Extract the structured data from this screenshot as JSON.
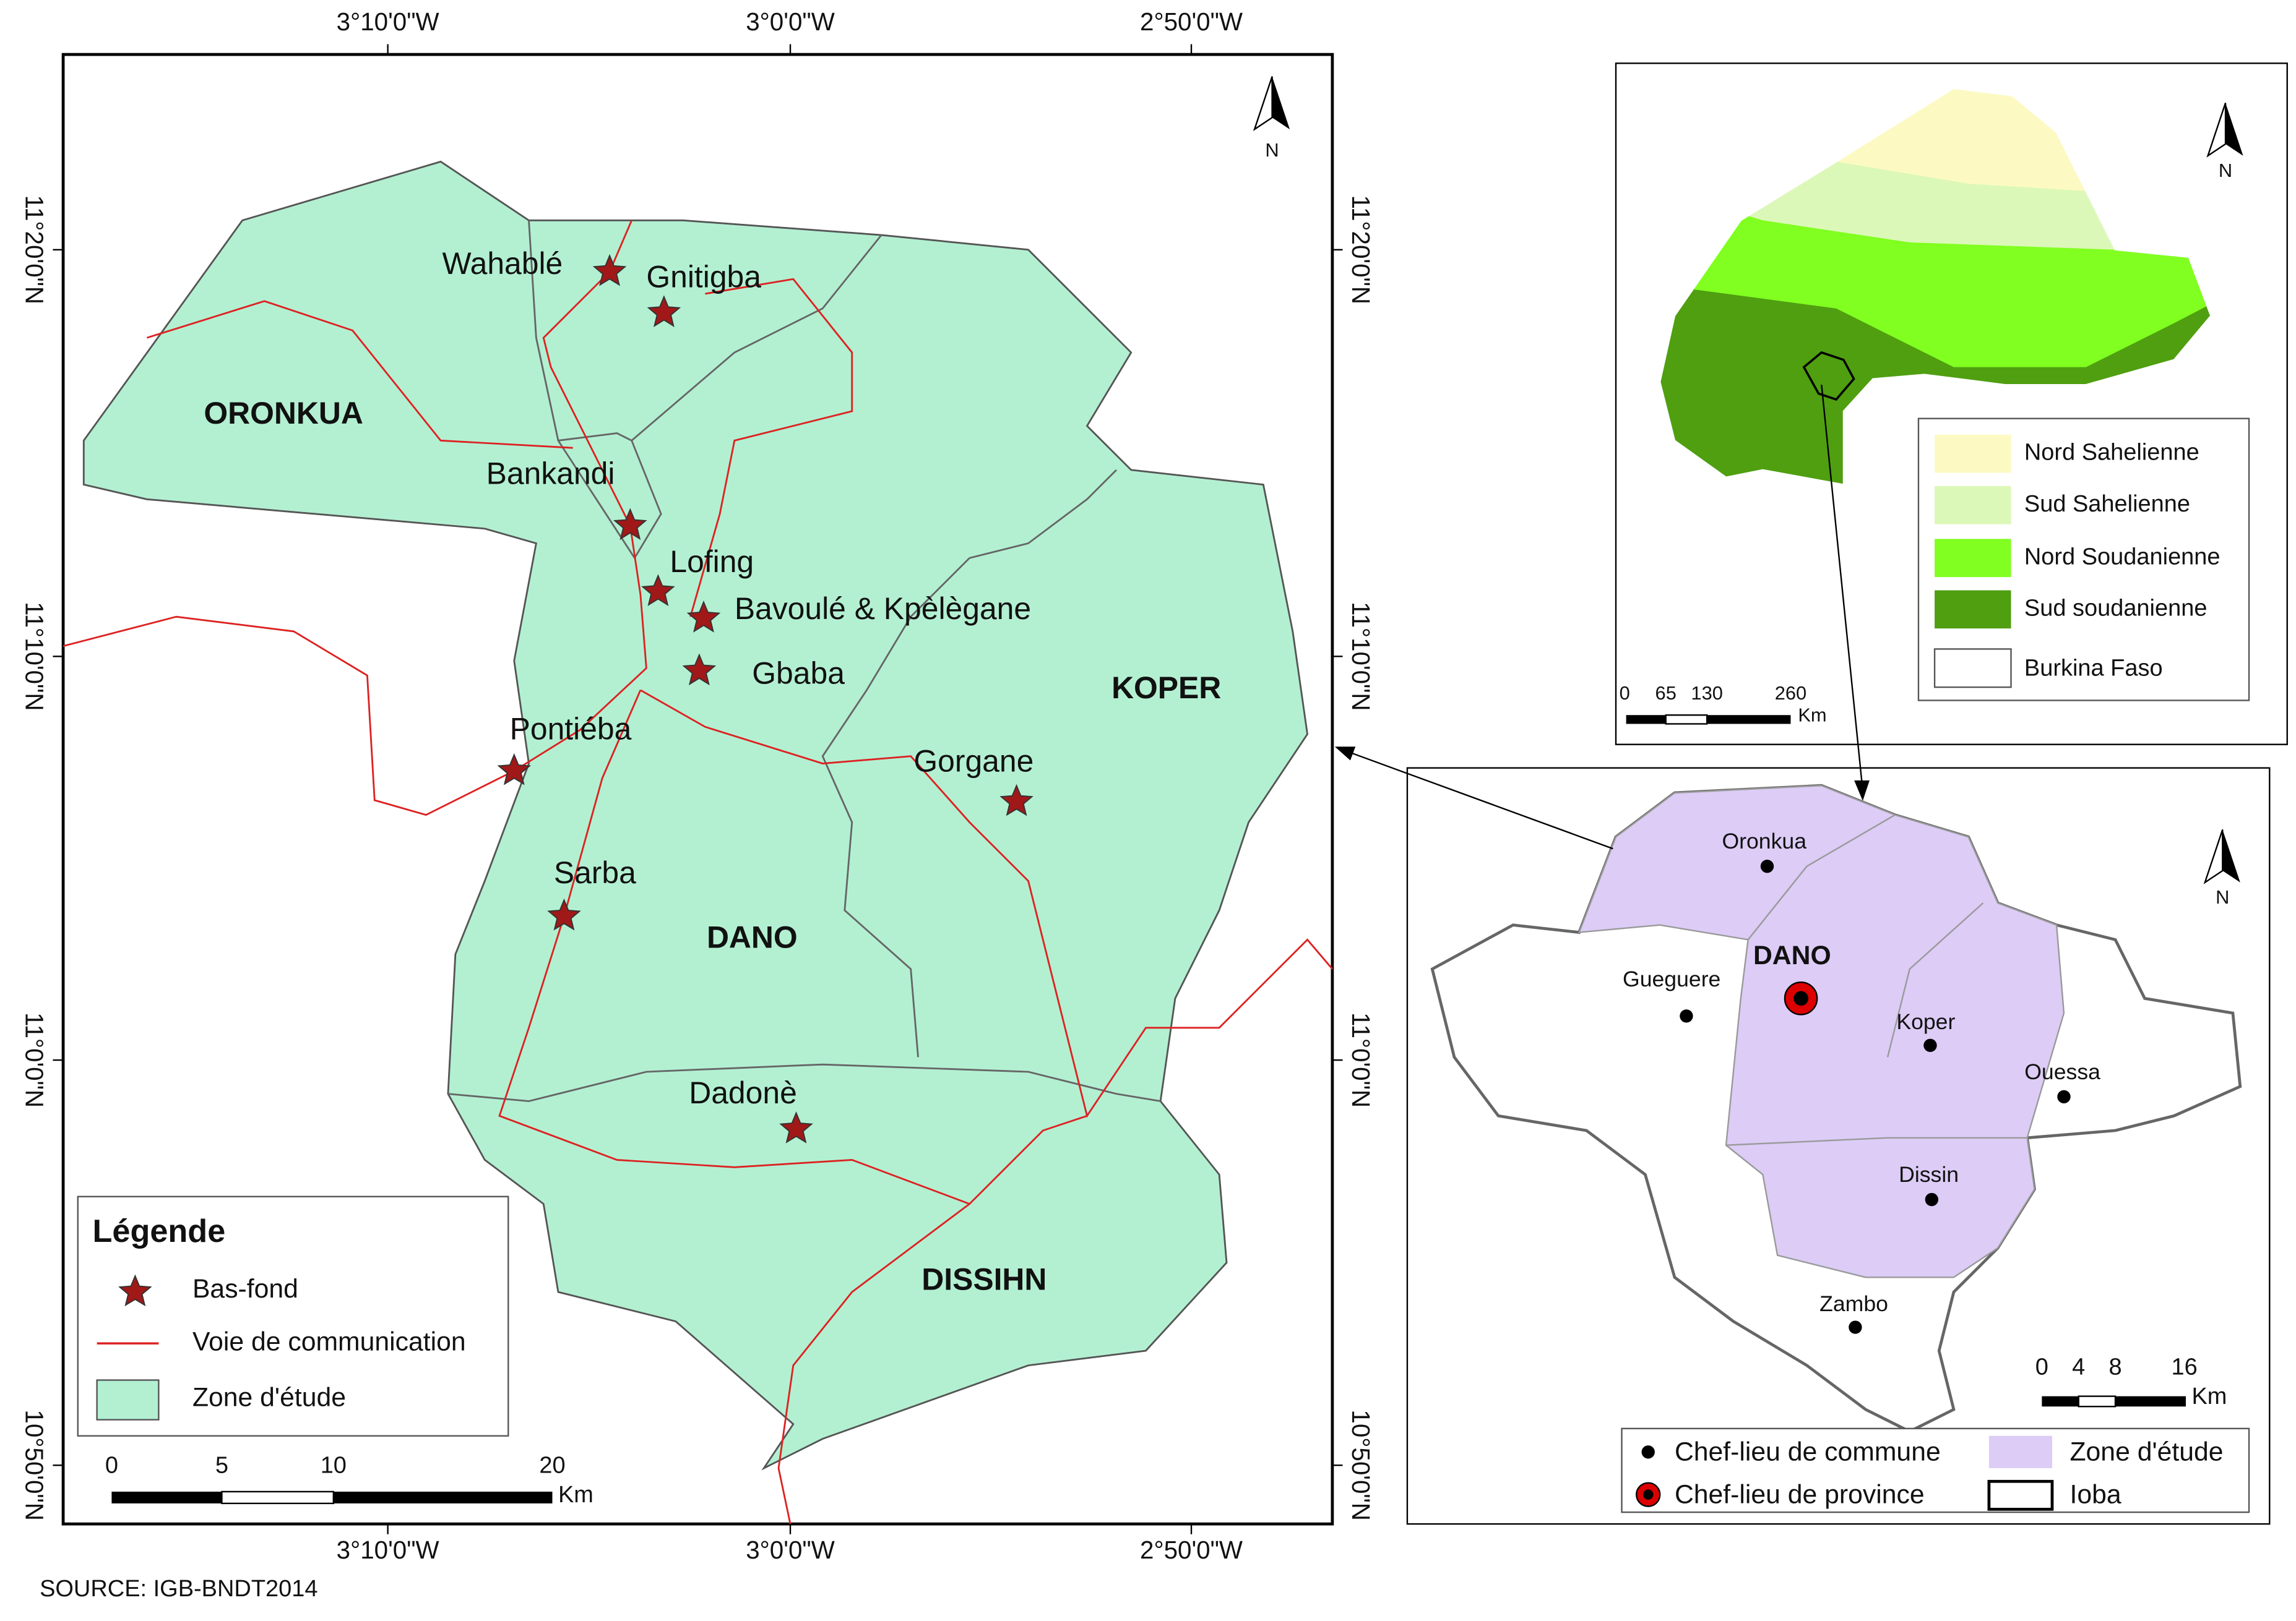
{
  "main_map": {
    "lon_labels": [
      "3°10'0\"W",
      "3°0'0\"W",
      "2°50'0\"W"
    ],
    "lat_labels": [
      "11°20'0\"N",
      "11°10'0\"N",
      "11°0'0\"N",
      "10°50'0\"N"
    ],
    "north": "N",
    "communes": [
      "ORONKUA",
      "KOPER",
      "DANO",
      "DISSIHN"
    ],
    "sites": [
      "Wahablé",
      "Gnitigba",
      "Bankandi",
      "Lofing",
      "Bavoulé & Kpèlègane",
      "Gbaba",
      "Pontiéba",
      "Gorgane",
      "Sarba",
      "Dadonè"
    ],
    "legend": {
      "title": "Légende",
      "items": [
        "Bas-fond",
        "Voie de communication",
        "Zone d'étude"
      ]
    },
    "scale": {
      "labels": [
        "0",
        "5",
        "10",
        "20"
      ],
      "unit": "Km"
    }
  },
  "inset_country": {
    "north": "N",
    "legend": [
      "Nord Sahelienne",
      "Sud Sahelienne",
      "Nord Soudanienne",
      "Sud soudanienne",
      "Burkina Faso"
    ],
    "scale": {
      "labels": [
        "0",
        "65",
        "130",
        "260"
      ],
      "unit": "Km"
    }
  },
  "inset_province": {
    "north": "N",
    "towns": [
      "Oronkua",
      "DANO",
      "Gueguere",
      "Koper",
      "Ouessa",
      "Dissin",
      "Zambo"
    ],
    "legend": [
      "Chef-lieu de commune",
      "Zone d'étude",
      "Chef-lieu de province",
      "Ioba"
    ],
    "scale": {
      "labels": [
        "0",
        "4",
        "8",
        "16"
      ],
      "unit": "Km"
    }
  },
  "source": "SOURCE: IGB-BNDT2014"
}
